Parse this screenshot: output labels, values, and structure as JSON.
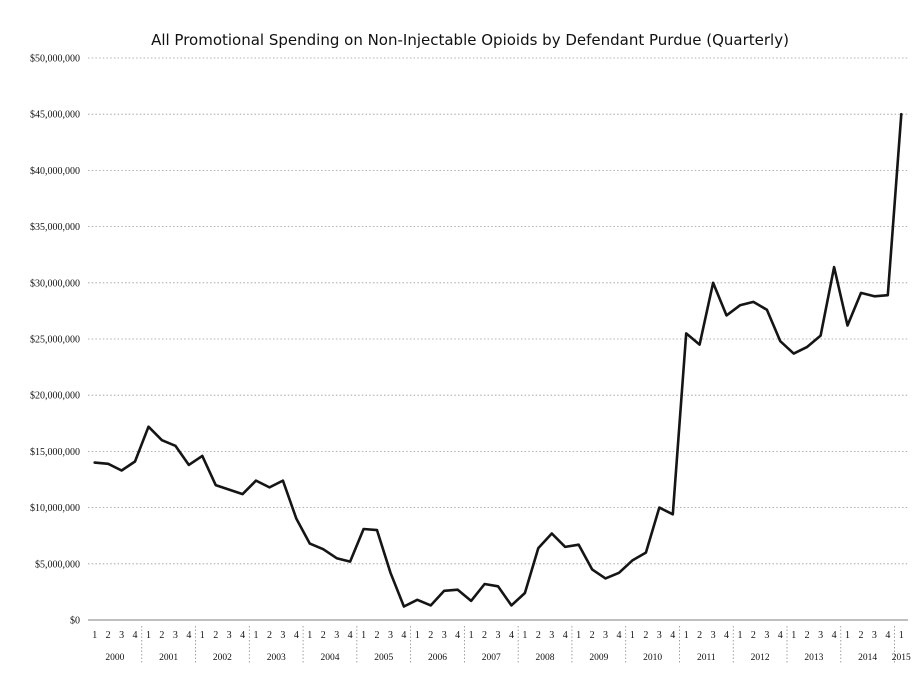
{
  "chart_data": {
    "type": "line",
    "title": "All Promotional Spending on Non-Injectable Opioids by Defendant Purdue (Quarterly)",
    "xlabel": "",
    "ylabel": "",
    "ylim": [
      0,
      50000000
    ],
    "yticks": [
      0,
      5000000,
      10000000,
      15000000,
      20000000,
      25000000,
      30000000,
      35000000,
      40000000,
      45000000,
      50000000
    ],
    "ytick_labels": [
      "$0",
      "$5,000,000",
      "$10,000,000",
      "$15,000,000",
      "$20,000,000",
      "$25,000,000",
      "$30,000,000",
      "$35,000,000",
      "$40,000,000",
      "$45,000,000",
      "$50,000,000"
    ],
    "grid": true,
    "legend": "none",
    "line_color": "#151515",
    "years": [
      "2000",
      "2001",
      "2002",
      "2003",
      "2004",
      "2005",
      "2006",
      "2007",
      "2008",
      "2009",
      "2010",
      "2011",
      "2012",
      "2013",
      "2014",
      "2015"
    ],
    "quarter_labels": [
      "1",
      "2",
      "3",
      "4"
    ],
    "x": [
      "2000 Q1",
      "2000 Q2",
      "2000 Q3",
      "2000 Q4",
      "2001 Q1",
      "2001 Q2",
      "2001 Q3",
      "2001 Q4",
      "2002 Q1",
      "2002 Q2",
      "2002 Q3",
      "2002 Q4",
      "2003 Q1",
      "2003 Q2",
      "2003 Q3",
      "2003 Q4",
      "2004 Q1",
      "2004 Q2",
      "2004 Q3",
      "2004 Q4",
      "2005 Q1",
      "2005 Q2",
      "2005 Q3",
      "2005 Q4",
      "2006 Q1",
      "2006 Q2",
      "2006 Q3",
      "2006 Q4",
      "2007 Q1",
      "2007 Q2",
      "2007 Q3",
      "2007 Q4",
      "2008 Q1",
      "2008 Q2",
      "2008 Q3",
      "2008 Q4",
      "2009 Q1",
      "2009 Q2",
      "2009 Q3",
      "2009 Q4",
      "2010 Q1",
      "2010 Q2",
      "2010 Q3",
      "2010 Q4",
      "2011 Q1",
      "2011 Q2",
      "2011 Q3",
      "2011 Q4",
      "2012 Q1",
      "2012 Q2",
      "2012 Q3",
      "2012 Q4",
      "2013 Q1",
      "2013 Q2",
      "2013 Q3",
      "2013 Q4",
      "2014 Q1",
      "2014 Q2",
      "2014 Q3",
      "2014 Q4",
      "2015 Q1"
    ],
    "values": [
      14000000,
      13900000,
      13300000,
      14100000,
      17200000,
      16000000,
      15500000,
      13800000,
      14600000,
      12000000,
      11600000,
      11200000,
      12400000,
      11800000,
      12400000,
      9000000,
      6800000,
      6300000,
      5500000,
      5200000,
      8100000,
      8000000,
      4200000,
      1200000,
      1800000,
      1300000,
      2600000,
      2700000,
      1700000,
      3200000,
      3000000,
      1300000,
      2400000,
      6400000,
      7700000,
      6500000,
      6700000,
      4500000,
      3700000,
      4200000,
      5300000,
      6000000,
      10000000,
      9400000,
      25500000,
      24500000,
      30000000,
      27100000,
      28000000,
      28300000,
      27600000,
      24800000,
      23700000,
      24300000,
      25300000,
      31400000,
      26200000,
      29100000,
      28800000,
      28900000,
      45000000
    ]
  }
}
